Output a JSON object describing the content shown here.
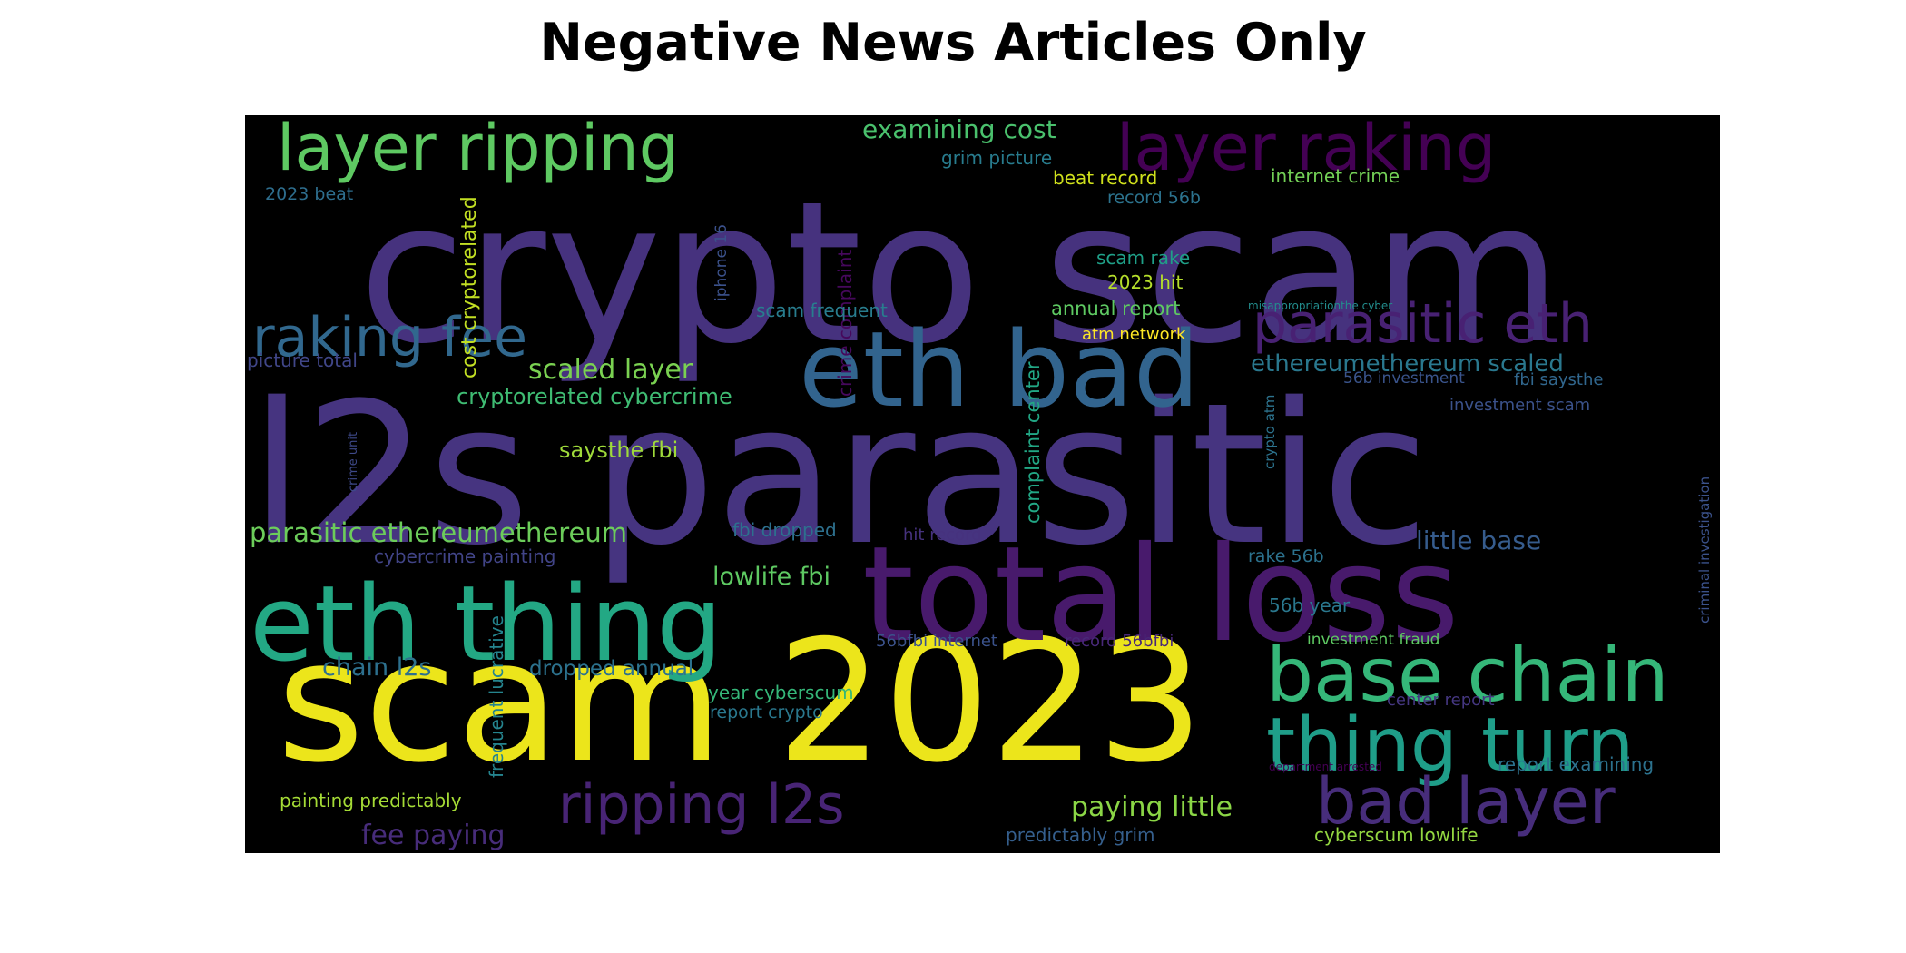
{
  "chart_data": {
    "type": "wordcloud",
    "title": "Negative News Articles Only",
    "background": "#000000",
    "colormap": "viridis",
    "words": [
      {
        "text": "crypto scam",
        "color": "#46327e"
      },
      {
        "text": "l2s parasitic",
        "color": "#463480"
      },
      {
        "text": "scam 2023",
        "color": "#ece51b"
      },
      {
        "text": "total loss",
        "color": "#481a6c"
      },
      {
        "text": "eth thing",
        "color": "#23a884"
      },
      {
        "text": "eth bad",
        "color": "#32648e"
      },
      {
        "text": "base chain",
        "color": "#35b779"
      },
      {
        "text": "thing turn",
        "color": "#1f9e89"
      },
      {
        "text": "layer ripping",
        "color": "#5ec962"
      },
      {
        "text": "layer raking",
        "color": "#440154"
      },
      {
        "text": "bad layer",
        "color": "#472d7b"
      },
      {
        "text": "ripping l2s",
        "color": "#482475"
      },
      {
        "text": "parasitic eth",
        "color": "#482173"
      },
      {
        "text": "raking fee",
        "color": "#31688e"
      },
      {
        "text": "parasitic ethereumethereum",
        "color": "#6ccd5a"
      },
      {
        "text": "ethereumethereum scaled",
        "color": "#2a788e"
      },
      {
        "text": "cryptorelated cybercrime",
        "color": "#3fbc73"
      },
      {
        "text": "scaled layer",
        "color": "#7ad151"
      },
      {
        "text": "examining cost",
        "color": "#4ac16d"
      },
      {
        "text": "little base",
        "color": "#365c8d"
      },
      {
        "text": "chain l2s",
        "color": "#2d708e"
      },
      {
        "text": "paying little",
        "color": "#8bd646"
      },
      {
        "text": "fee paying",
        "color": "#472c7a"
      },
      {
        "text": "lowlife fbi",
        "color": "#5ec962"
      },
      {
        "text": "saysthe fbi",
        "color": "#9fda3a"
      },
      {
        "text": "dropped annual",
        "color": "#2c728e"
      },
      {
        "text": "cost cryptorelated",
        "color": "#c2df23"
      },
      {
        "text": "frequent lucrative",
        "color": "#25848e"
      },
      {
        "text": "complaint center",
        "color": "#22a785"
      },
      {
        "text": "crime complaint",
        "color": "#46085c"
      },
      {
        "text": "iphone 16",
        "color": "#3b518b"
      },
      {
        "text": "crypto atm",
        "color": "#2c738e"
      },
      {
        "text": "crime unit",
        "color": "#3e4989"
      },
      {
        "text": "criminal investigation",
        "color": "#3b528b"
      },
      {
        "text": "grim picture",
        "color": "#287c8e"
      },
      {
        "text": "beat record",
        "color": "#d0e11c"
      },
      {
        "text": "record 56b",
        "color": "#2c738e"
      },
      {
        "text": "internet crime",
        "color": "#73d056"
      },
      {
        "text": "2023 beat",
        "color": "#2e6e8e"
      },
      {
        "text": "scam rake",
        "color": "#1fa088"
      },
      {
        "text": "2023 hit",
        "color": "#b5de2b"
      },
      {
        "text": "annual report",
        "color": "#5ec962"
      },
      {
        "text": "scam frequent",
        "color": "#287d8e"
      },
      {
        "text": "atm network",
        "color": "#fde725"
      },
      {
        "text": "misappropriationthe cyber",
        "color": "#228d8d"
      },
      {
        "text": "picture total",
        "color": "#404688"
      },
      {
        "text": "56b investment",
        "color": "#3a548c"
      },
      {
        "text": "fbi saysthe",
        "color": "#31678e"
      },
      {
        "text": "investment scam",
        "color": "#3b528b"
      },
      {
        "text": "fbi dropped",
        "color": "#2d708e"
      },
      {
        "text": "hit record",
        "color": "#46327e"
      },
      {
        "text": "cybercrime painting",
        "color": "#414487"
      },
      {
        "text": "rake 56b",
        "color": "#2c728e"
      },
      {
        "text": "56b year",
        "color": "#2a788e"
      },
      {
        "text": "56bfbi internet",
        "color": "#3b528b"
      },
      {
        "text": "record 56bfbi",
        "color": "#482878"
      },
      {
        "text": "investment fraud",
        "color": "#5ec962"
      },
      {
        "text": "year cyberscum",
        "color": "#35b779"
      },
      {
        "text": "report crypto",
        "color": "#2a788e"
      },
      {
        "text": "center report",
        "color": "#453781"
      },
      {
        "text": "department arrested",
        "color": "#440154"
      },
      {
        "text": "report examining",
        "color": "#2c728e"
      },
      {
        "text": "painting predictably",
        "color": "#a5db36"
      },
      {
        "text": "predictably grim",
        "color": "#355f8d"
      },
      {
        "text": "cyberscum lowlife",
        "color": "#93d741"
      }
    ]
  }
}
